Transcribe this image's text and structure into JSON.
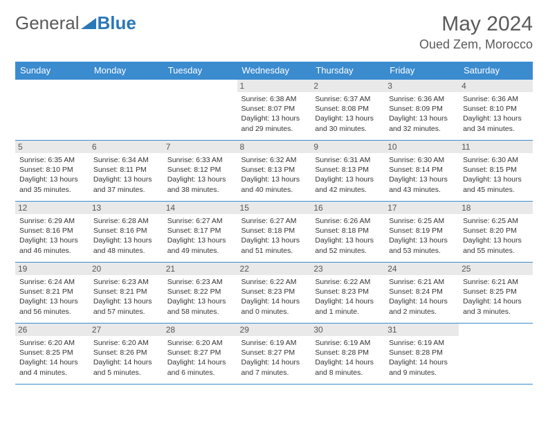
{
  "logo": {
    "general": "General",
    "blue": "Blue"
  },
  "header": {
    "title": "May 2024",
    "location": "Oued Zem, Morocco"
  },
  "colors": {
    "header_bg": "#3b8bcf",
    "header_text": "#ffffff",
    "daynum_bg": "#e9e9e9",
    "border": "#3b8bcf",
    "logo_blue": "#2a77b8",
    "text": "#333333"
  },
  "weekdays": [
    "Sunday",
    "Monday",
    "Tuesday",
    "Wednesday",
    "Thursday",
    "Friday",
    "Saturday"
  ],
  "weeks": [
    [
      null,
      null,
      null,
      {
        "n": "1",
        "sunrise": "6:38 AM",
        "sunset": "8:07 PM",
        "daylight": "13 hours and 29 minutes."
      },
      {
        "n": "2",
        "sunrise": "6:37 AM",
        "sunset": "8:08 PM",
        "daylight": "13 hours and 30 minutes."
      },
      {
        "n": "3",
        "sunrise": "6:36 AM",
        "sunset": "8:09 PM",
        "daylight": "13 hours and 32 minutes."
      },
      {
        "n": "4",
        "sunrise": "6:36 AM",
        "sunset": "8:10 PM",
        "daylight": "13 hours and 34 minutes."
      }
    ],
    [
      {
        "n": "5",
        "sunrise": "6:35 AM",
        "sunset": "8:10 PM",
        "daylight": "13 hours and 35 minutes."
      },
      {
        "n": "6",
        "sunrise": "6:34 AM",
        "sunset": "8:11 PM",
        "daylight": "13 hours and 37 minutes."
      },
      {
        "n": "7",
        "sunrise": "6:33 AM",
        "sunset": "8:12 PM",
        "daylight": "13 hours and 38 minutes."
      },
      {
        "n": "8",
        "sunrise": "6:32 AM",
        "sunset": "8:13 PM",
        "daylight": "13 hours and 40 minutes."
      },
      {
        "n": "9",
        "sunrise": "6:31 AM",
        "sunset": "8:13 PM",
        "daylight": "13 hours and 42 minutes."
      },
      {
        "n": "10",
        "sunrise": "6:30 AM",
        "sunset": "8:14 PM",
        "daylight": "13 hours and 43 minutes."
      },
      {
        "n": "11",
        "sunrise": "6:30 AM",
        "sunset": "8:15 PM",
        "daylight": "13 hours and 45 minutes."
      }
    ],
    [
      {
        "n": "12",
        "sunrise": "6:29 AM",
        "sunset": "8:16 PM",
        "daylight": "13 hours and 46 minutes."
      },
      {
        "n": "13",
        "sunrise": "6:28 AM",
        "sunset": "8:16 PM",
        "daylight": "13 hours and 48 minutes."
      },
      {
        "n": "14",
        "sunrise": "6:27 AM",
        "sunset": "8:17 PM",
        "daylight": "13 hours and 49 minutes."
      },
      {
        "n": "15",
        "sunrise": "6:27 AM",
        "sunset": "8:18 PM",
        "daylight": "13 hours and 51 minutes."
      },
      {
        "n": "16",
        "sunrise": "6:26 AM",
        "sunset": "8:18 PM",
        "daylight": "13 hours and 52 minutes."
      },
      {
        "n": "17",
        "sunrise": "6:25 AM",
        "sunset": "8:19 PM",
        "daylight": "13 hours and 53 minutes."
      },
      {
        "n": "18",
        "sunrise": "6:25 AM",
        "sunset": "8:20 PM",
        "daylight": "13 hours and 55 minutes."
      }
    ],
    [
      {
        "n": "19",
        "sunrise": "6:24 AM",
        "sunset": "8:21 PM",
        "daylight": "13 hours and 56 minutes."
      },
      {
        "n": "20",
        "sunrise": "6:23 AM",
        "sunset": "8:21 PM",
        "daylight": "13 hours and 57 minutes."
      },
      {
        "n": "21",
        "sunrise": "6:23 AM",
        "sunset": "8:22 PM",
        "daylight": "13 hours and 58 minutes."
      },
      {
        "n": "22",
        "sunrise": "6:22 AM",
        "sunset": "8:23 PM",
        "daylight": "14 hours and 0 minutes."
      },
      {
        "n": "23",
        "sunrise": "6:22 AM",
        "sunset": "8:23 PM",
        "daylight": "14 hours and 1 minute."
      },
      {
        "n": "24",
        "sunrise": "6:21 AM",
        "sunset": "8:24 PM",
        "daylight": "14 hours and 2 minutes."
      },
      {
        "n": "25",
        "sunrise": "6:21 AM",
        "sunset": "8:25 PM",
        "daylight": "14 hours and 3 minutes."
      }
    ],
    [
      {
        "n": "26",
        "sunrise": "6:20 AM",
        "sunset": "8:25 PM",
        "daylight": "14 hours and 4 minutes."
      },
      {
        "n": "27",
        "sunrise": "6:20 AM",
        "sunset": "8:26 PM",
        "daylight": "14 hours and 5 minutes."
      },
      {
        "n": "28",
        "sunrise": "6:20 AM",
        "sunset": "8:27 PM",
        "daylight": "14 hours and 6 minutes."
      },
      {
        "n": "29",
        "sunrise": "6:19 AM",
        "sunset": "8:27 PM",
        "daylight": "14 hours and 7 minutes."
      },
      {
        "n": "30",
        "sunrise": "6:19 AM",
        "sunset": "8:28 PM",
        "daylight": "14 hours and 8 minutes."
      },
      {
        "n": "31",
        "sunrise": "6:19 AM",
        "sunset": "8:28 PM",
        "daylight": "14 hours and 9 minutes."
      },
      null
    ]
  ],
  "labels": {
    "sunrise": "Sunrise:",
    "sunset": "Sunset:",
    "daylight": "Daylight:"
  }
}
